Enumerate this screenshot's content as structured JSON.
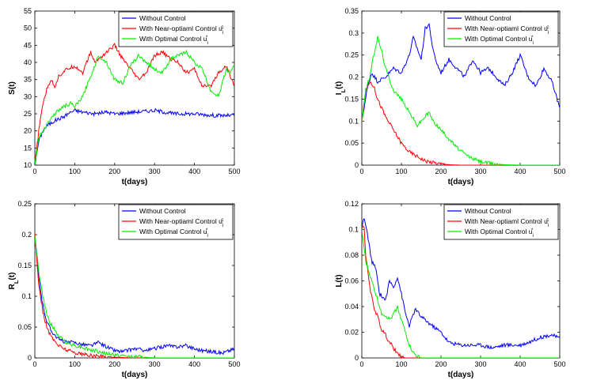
{
  "chart_data": [
    {
      "type": "line",
      "xlabel": "t(days)",
      "ylabel": "S(t)",
      "xlim": [
        0,
        500
      ],
      "ylim": [
        10,
        55
      ],
      "xticks": [
        0,
        100,
        200,
        300,
        400,
        500
      ],
      "yticks": [
        10,
        15,
        20,
        25,
        30,
        35,
        40,
        45,
        50,
        55
      ],
      "legend_position": "top-right",
      "series": [
        {
          "name": "Without Control",
          "color": "#0000ff",
          "x": [
            0,
            10,
            20,
            30,
            50,
            70,
            90,
            100,
            120,
            150,
            180,
            200,
            250,
            300,
            350,
            400,
            450,
            500
          ],
          "values": [
            10,
            17,
            20,
            21.5,
            23,
            24,
            25.5,
            26,
            25.5,
            25,
            25.5,
            25,
            25.5,
            26,
            25,
            25,
            24.5,
            24.5
          ]
        },
        {
          "name": "With Near-optiaml Control u_i^c",
          "color": "#ff0000",
          "x": [
            0,
            10,
            20,
            30,
            40,
            50,
            60,
            80,
            100,
            120,
            140,
            150,
            170,
            190,
            200,
            220,
            240,
            260,
            280,
            300,
            320,
            340,
            360,
            380,
            400,
            420,
            440,
            460,
            480,
            500
          ],
          "values": [
            10,
            20,
            28,
            32,
            35,
            33,
            36,
            38,
            39,
            37,
            43,
            40,
            42,
            44,
            45,
            41,
            38,
            35,
            37,
            42,
            43,
            41,
            40,
            37,
            38,
            33,
            33,
            37,
            39,
            33
          ]
        },
        {
          "name": "With Optimal Control u_i^*",
          "color": "#00ee00",
          "x": [
            0,
            10,
            20,
            30,
            50,
            70,
            90,
            100,
            120,
            140,
            160,
            180,
            200,
            220,
            240,
            260,
            280,
            300,
            320,
            340,
            360,
            380,
            400,
            420,
            440,
            460,
            470,
            480,
            490,
            500
          ],
          "values": [
            10,
            18,
            20,
            22,
            25,
            27,
            28,
            27,
            30,
            36,
            42,
            40,
            35,
            34,
            39,
            42,
            40,
            38,
            37,
            41,
            42,
            43,
            40,
            38,
            32,
            30,
            34,
            38,
            37,
            39
          ]
        }
      ]
    },
    {
      "type": "line",
      "xlabel": "t(days)",
      "ylabel": "I_L(t)",
      "xlim": [
        0,
        500
      ],
      "ylim": [
        0,
        0.35
      ],
      "xticks": [
        0,
        100,
        200,
        300,
        400,
        500
      ],
      "yticks": [
        0,
        0.05,
        0.1,
        0.15,
        0.2,
        0.25,
        0.3,
        0.35
      ],
      "legend_position": "top-right",
      "series": [
        {
          "name": "Without Control",
          "color": "#0000ff",
          "x": [
            0,
            15,
            25,
            40,
            60,
            80,
            100,
            120,
            130,
            150,
            160,
            170,
            180,
            190,
            200,
            220,
            240,
            260,
            280,
            300,
            320,
            340,
            360,
            380,
            400,
            420,
            440,
            460,
            480,
            500
          ],
          "values": [
            0.1,
            0.18,
            0.21,
            0.19,
            0.2,
            0.22,
            0.21,
            0.25,
            0.29,
            0.24,
            0.31,
            0.32,
            0.26,
            0.23,
            0.21,
            0.24,
            0.22,
            0.2,
            0.24,
            0.21,
            0.22,
            0.2,
            0.18,
            0.21,
            0.25,
            0.2,
            0.18,
            0.22,
            0.19,
            0.13
          ]
        },
        {
          "name": "With Near-optiaml Control u_i^c",
          "color": "#ff0000",
          "x": [
            0,
            10,
            20,
            30,
            40,
            60,
            80,
            100,
            120,
            140,
            160,
            180,
            200,
            220,
            250,
            300,
            400,
            500
          ],
          "values": [
            0.1,
            0.17,
            0.19,
            0.18,
            0.15,
            0.11,
            0.08,
            0.05,
            0.03,
            0.02,
            0.01,
            0.006,
            0.003,
            0.001,
            0,
            0,
            0,
            0
          ]
        },
        {
          "name": "With Optimal Control u_i^*",
          "color": "#00ee00",
          "x": [
            0,
            10,
            20,
            30,
            40,
            50,
            60,
            80,
            100,
            120,
            140,
            160,
            170,
            180,
            200,
            220,
            240,
            260,
            280,
            300,
            330,
            360,
            400,
            450,
            500
          ],
          "values": [
            0.1,
            0.17,
            0.2,
            0.25,
            0.29,
            0.26,
            0.22,
            0.17,
            0.15,
            0.12,
            0.09,
            0.11,
            0.12,
            0.1,
            0.08,
            0.06,
            0.04,
            0.025,
            0.015,
            0.008,
            0.003,
            0.001,
            0,
            0,
            0
          ]
        }
      ]
    },
    {
      "type": "line",
      "xlabel": "t(days)",
      "ylabel": "R_L(t)",
      "xlim": [
        0,
        500
      ],
      "ylim": [
        0,
        0.25
      ],
      "xticks": [
        0,
        100,
        200,
        300,
        400,
        500
      ],
      "yticks": [
        0,
        0.05,
        0.1,
        0.15,
        0.2,
        0.25
      ],
      "legend_position": "top-right",
      "series": [
        {
          "name": "Without Control",
          "color": "#0000ff",
          "x": [
            0,
            10,
            20,
            30,
            40,
            60,
            80,
            100,
            120,
            140,
            160,
            180,
            200,
            220,
            250,
            280,
            300,
            330,
            350,
            380,
            400,
            420,
            450,
            470,
            500
          ],
          "values": [
            0.2,
            0.13,
            0.085,
            0.06,
            0.045,
            0.03,
            0.025,
            0.025,
            0.022,
            0.02,
            0.025,
            0.018,
            0.012,
            0.01,
            0.015,
            0.012,
            0.015,
            0.02,
            0.018,
            0.02,
            0.015,
            0.012,
            0.01,
            0.008,
            0.015
          ]
        },
        {
          "name": "With Near-optiaml Control u_i^c",
          "color": "#ff0000",
          "x": [
            0,
            10,
            20,
            30,
            40,
            60,
            80,
            100,
            120,
            140,
            160,
            180,
            200,
            250,
            300,
            400,
            500
          ],
          "values": [
            0.2,
            0.12,
            0.075,
            0.05,
            0.035,
            0.02,
            0.013,
            0.009,
            0.006,
            0.004,
            0.003,
            0.002,
            0.001,
            0,
            0,
            0,
            0
          ]
        },
        {
          "name": "With Optimal Control u_i^*",
          "color": "#00ee00",
          "x": [
            0,
            10,
            20,
            30,
            40,
            60,
            80,
            100,
            120,
            140,
            160,
            180,
            200,
            220,
            250,
            280,
            300,
            400,
            500
          ],
          "values": [
            0.2,
            0.14,
            0.1,
            0.07,
            0.055,
            0.035,
            0.025,
            0.02,
            0.017,
            0.013,
            0.01,
            0.007,
            0.005,
            0.003,
            0.002,
            0.001,
            0,
            0,
            0
          ]
        }
      ]
    },
    {
      "type": "line",
      "xlabel": "t(days)",
      "ylabel": "L(t)",
      "xlim": [
        0,
        500
      ],
      "ylim": [
        0,
        0.12
      ],
      "xticks": [
        0,
        100,
        200,
        300,
        400,
        500
      ],
      "yticks": [
        0,
        0.02,
        0.04,
        0.06,
        0.08,
        0.1,
        0.12
      ],
      "legend_position": "top-right",
      "series": [
        {
          "name": "Without Control",
          "color": "#0000ff",
          "x": [
            0,
            5,
            15,
            25,
            35,
            45,
            60,
            70,
            80,
            90,
            100,
            110,
            120,
            135,
            150,
            170,
            200,
            220,
            250,
            300,
            330,
            360,
            400,
            420,
            450,
            480,
            500
          ],
          "values": [
            0.1,
            0.11,
            0.095,
            0.075,
            0.07,
            0.05,
            0.045,
            0.06,
            0.055,
            0.063,
            0.05,
            0.035,
            0.025,
            0.038,
            0.032,
            0.027,
            0.02,
            0.012,
            0.01,
            0.01,
            0.008,
            0.01,
            0.01,
            0.012,
            0.016,
            0.018,
            0.015
          ]
        },
        {
          "name": "With Near-optiaml Control u_i^c",
          "color": "#ff0000",
          "x": [
            0,
            5,
            10,
            20,
            30,
            40,
            50,
            60,
            70,
            80,
            90,
            100,
            110,
            120,
            150,
            200,
            300,
            400,
            500
          ],
          "values": [
            0.1,
            0.105,
            0.08,
            0.055,
            0.04,
            0.032,
            0.022,
            0.018,
            0.012,
            0.008,
            0.003,
            0.001,
            0,
            0,
            0,
            0,
            0,
            0,
            0
          ]
        },
        {
          "name": "With Optimal Control u_i^*",
          "color": "#00ee00",
          "x": [
            0,
            10,
            20,
            30,
            40,
            50,
            60,
            70,
            80,
            90,
            100,
            110,
            120,
            130,
            140,
            150,
            200,
            300,
            400,
            500
          ],
          "values": [
            0.1,
            0.075,
            0.065,
            0.055,
            0.045,
            0.035,
            0.033,
            0.03,
            0.034,
            0.04,
            0.03,
            0.02,
            0.01,
            0.004,
            0.001,
            0,
            0,
            0,
            0,
            0
          ]
        }
      ]
    }
  ]
}
